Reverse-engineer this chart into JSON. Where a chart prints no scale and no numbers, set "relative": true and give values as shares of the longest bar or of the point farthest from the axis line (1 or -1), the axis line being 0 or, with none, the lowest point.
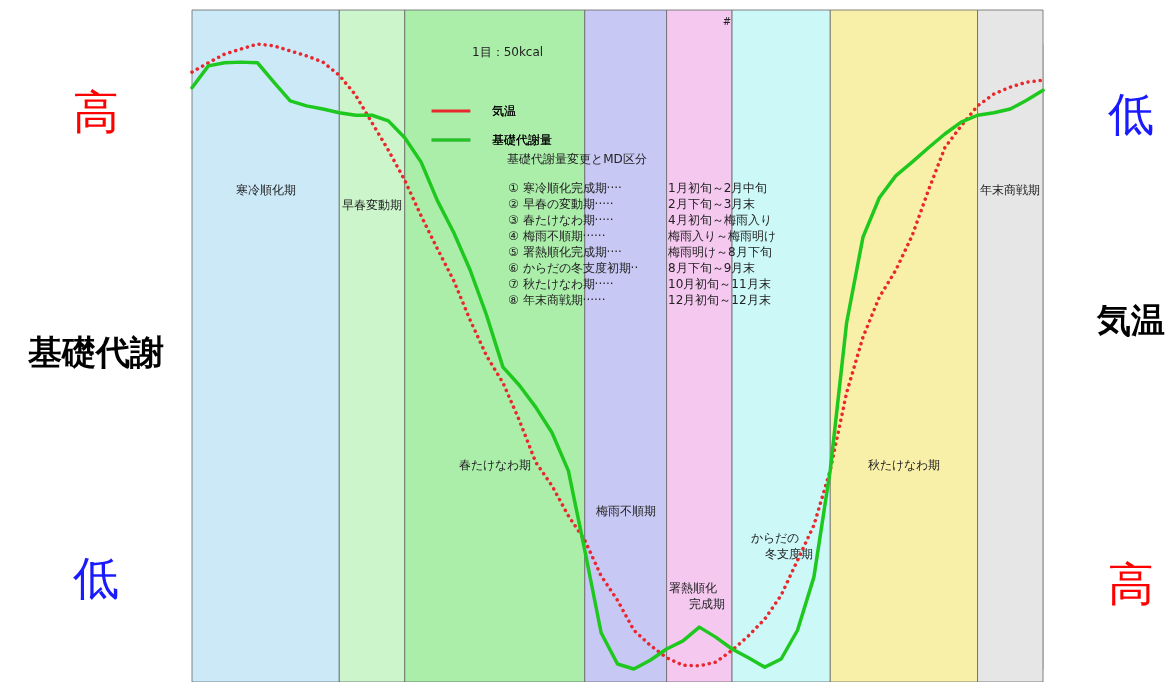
{
  "chart_data": {
    "type": "line",
    "relative": true,
    "ylabel": "基礎代謝",
    "y2label": "気温",
    "legend": "top",
    "marker": "none",
    "categories": [
      null,
      null,
      null,
      null,
      null,
      null,
      null,
      null,
      null,
      null,
      null,
      null,
      null,
      null,
      null,
      null,
      null,
      null,
      null,
      null,
      null,
      null,
      null,
      null,
      null,
      null,
      null,
      null,
      null,
      null,
      null,
      null,
      null,
      null,
      null,
      null,
      null,
      null,
      null,
      null,
      null,
      null,
      null,
      null,
      null,
      null,
      null,
      null,
      null,
      null,
      null,
      null,
      null
    ],
    "series": [
      {
        "name": "気温",
        "color": "#e8282d",
        "line_style": "dotted",
        "values": [
          0.955,
          0.97,
          0.984,
          0.992,
          1,
          0.997,
          0.989,
          0.981,
          0.971,
          0.95,
          0.918,
          0.874,
          0.83,
          0.782,
          0.725,
          0.672,
          0.621,
          0.558,
          0.501,
          0.458,
          0.398,
          0.331,
          0.293,
          0.245,
          0.206,
          0.149,
          0.11,
          0.062,
          0.038,
          0.018,
          0.006,
          0.005,
          0.011,
          0.03,
          0.053,
          0.08,
          0.118,
          0.174,
          0.23,
          0.318,
          0.442,
          0.531,
          0.595,
          0.638,
          0.693,
          0.766,
          0.834,
          0.869,
          0.901,
          0.92,
          0.931,
          0.939,
          0.942
        ]
      },
      {
        "name": "基礎代謝量",
        "color": "#1ec81e",
        "line_style": "solid",
        "values": [
          0.93,
          0.965,
          0.97,
          0.971,
          0.97,
          0.939,
          0.909,
          0.901,
          0.896,
          0.89,
          0.886,
          0.886,
          0.877,
          0.85,
          0.811,
          0.749,
          0.698,
          0.638,
          0.566,
          0.483,
          0.454,
          0.419,
          0.378,
          0.317,
          0.19,
          0.058,
          0.008,
          0,
          0.014,
          0.032,
          0.045,
          0.067,
          0.051,
          0.032,
          0.018,
          0.003,
          0.016,
          0.062,
          0.147,
          0.318,
          0.554,
          0.691,
          0.754,
          0.789,
          0.811,
          0.834,
          0.856,
          0.875,
          0.886,
          0.89,
          0.896,
          0.91,
          0.926
        ]
      }
    ],
    "annotations": [
      "1目：50kcal",
      "基礎代謝量変更とMD区分",
      "① 寒冷順化完成期····",
      "1月初旬～2月中旬",
      "② 早春の変動期·····",
      "2月下旬～3月末",
      "③ 春たけなわ期·····",
      "4月初旬～梅雨入り",
      "④ 梅雨不順期······",
      "梅雨入り～梅雨明け",
      "⑤ 署熱順化完成期····",
      "梅雨明け～8月下旬",
      "⑥ からだの冬支度初期··",
      "8月下旬～9月末",
      "⑦ 秋たけなわ期·····",
      "10月初旬～11月末",
      "⑧ 年末商戦期······",
      "12月初旬～12月末",
      "#",
      "高",
      "低",
      "低",
      "高",
      "寒冷順化期",
      "早春変動期",
      "春たけなわ期",
      "梅雨不順期",
      "署熱順化完成期",
      "からだの冬支度期",
      "秋たけなわ期",
      "年末商戦期"
    ]
  }
}
